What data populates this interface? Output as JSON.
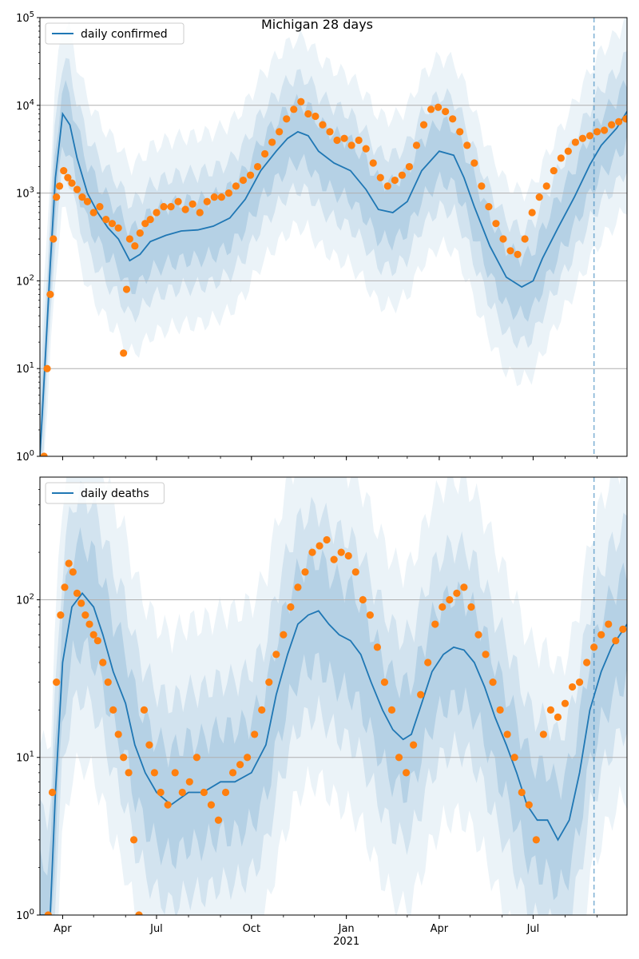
{
  "title": "Michigan 28 days",
  "colors": {
    "line": "#1f77b4",
    "points": "#ff7f0e",
    "band": "#1f77b4",
    "grid": "#b0b0b0",
    "vline": "#1f77b4"
  },
  "x_axis": {
    "range": [
      "2020-03-10",
      "2021-09-30"
    ],
    "ticks": [
      {
        "date": "2020-04-01",
        "label": "Apr"
      },
      {
        "date": "2020-07-01",
        "label": "Jul"
      },
      {
        "date": "2020-10-01",
        "label": "Oct"
      },
      {
        "date": "2021-01-01",
        "label": "Jan"
      },
      {
        "date": "2021-04-01",
        "label": "Apr"
      },
      {
        "date": "2021-07-01",
        "label": "Jul"
      }
    ],
    "year_label": "2021"
  },
  "chart_data": [
    {
      "type": "line",
      "title": "Michigan 28 days",
      "legend": {
        "label": "daily confirmed",
        "placement": "top-left"
      },
      "yscale": "log",
      "ylim": [
        1,
        100000
      ],
      "ytick_labels": [
        "10^0",
        "10^1",
        "10^2",
        "10^3",
        "10^4",
        "10^5"
      ],
      "grid": "horizontal",
      "forecast_start": "2021-08-29",
      "model_median": {
        "x": [
          "2020-03-10",
          "2020-03-15",
          "2020-03-20",
          "2020-03-25",
          "2020-04-01",
          "2020-04-08",
          "2020-04-15",
          "2020-04-25",
          "2020-05-05",
          "2020-05-15",
          "2020-05-25",
          "2020-06-05",
          "2020-06-15",
          "2020-06-25",
          "2020-07-10",
          "2020-07-25",
          "2020-08-10",
          "2020-08-25",
          "2020-09-10",
          "2020-09-25",
          "2020-10-10",
          "2020-10-25",
          "2020-11-05",
          "2020-11-15",
          "2020-11-25",
          "2020-12-05",
          "2020-12-20",
          "2021-01-05",
          "2021-01-20",
          "2021-02-01",
          "2021-02-15",
          "2021-03-01",
          "2021-03-15",
          "2021-04-01",
          "2021-04-15",
          "2021-04-25",
          "2021-05-05",
          "2021-05-20",
          "2021-06-05",
          "2021-06-20",
          "2021-07-01",
          "2021-07-10",
          "2021-07-25",
          "2021-08-10",
          "2021-08-25",
          "2021-09-05",
          "2021-09-20",
          "2021-09-30"
        ],
        "y": [
          1,
          12,
          150,
          1500,
          8000,
          6000,
          2500,
          1000,
          600,
          400,
          300,
          170,
          200,
          280,
          330,
          370,
          380,
          420,
          520,
          850,
          1800,
          3000,
          4200,
          5000,
          4500,
          3000,
          2200,
          1800,
          1100,
          650,
          600,
          800,
          1800,
          3000,
          2700,
          1500,
          700,
          250,
          110,
          85,
          100,
          180,
          400,
          900,
          2100,
          3500,
          5500,
          8500
        ]
      },
      "observed": {
        "x": [
          "2020-03-14",
          "2020-03-17",
          "2020-03-20",
          "2020-03-23",
          "2020-03-26",
          "2020-03-29",
          "2020-04-02",
          "2020-04-06",
          "2020-04-10",
          "2020-04-15",
          "2020-04-20",
          "2020-04-25",
          "2020-05-01",
          "2020-05-07",
          "2020-05-13",
          "2020-05-19",
          "2020-05-25",
          "2020-05-30",
          "2020-06-02",
          "2020-06-05",
          "2020-06-10",
          "2020-06-15",
          "2020-06-20",
          "2020-06-25",
          "2020-07-01",
          "2020-07-08",
          "2020-07-15",
          "2020-07-22",
          "2020-07-29",
          "2020-08-05",
          "2020-08-12",
          "2020-08-19",
          "2020-08-26",
          "2020-09-02",
          "2020-09-09",
          "2020-09-16",
          "2020-09-23",
          "2020-09-30",
          "2020-10-07",
          "2020-10-14",
          "2020-10-21",
          "2020-10-28",
          "2020-11-04",
          "2020-11-11",
          "2020-11-18",
          "2020-11-25",
          "2020-12-02",
          "2020-12-09",
          "2020-12-16",
          "2020-12-23",
          "2020-12-30",
          "2021-01-06",
          "2021-01-13",
          "2021-01-20",
          "2021-01-27",
          "2021-02-03",
          "2021-02-10",
          "2021-02-17",
          "2021-02-24",
          "2021-03-03",
          "2021-03-10",
          "2021-03-17",
          "2021-03-24",
          "2021-03-31",
          "2021-04-07",
          "2021-04-14",
          "2021-04-21",
          "2021-04-28",
          "2021-05-05",
          "2021-05-12",
          "2021-05-19",
          "2021-05-26",
          "2021-06-02",
          "2021-06-09",
          "2021-06-16",
          "2021-06-23",
          "2021-06-30",
          "2021-07-07",
          "2021-07-14",
          "2021-07-21",
          "2021-07-28",
          "2021-08-04",
          "2021-08-11",
          "2021-08-18",
          "2021-08-25",
          "2021-09-01",
          "2021-09-08",
          "2021-09-15",
          "2021-09-22",
          "2021-09-29"
        ],
        "y": [
          1,
          10,
          70,
          300,
          900,
          1200,
          1800,
          1500,
          1300,
          1100,
          900,
          800,
          600,
          700,
          500,
          450,
          400,
          15,
          80,
          300,
          250,
          350,
          450,
          500,
          600,
          700,
          700,
          800,
          650,
          750,
          600,
          800,
          900,
          900,
          1000,
          1200,
          1400,
          1600,
          2000,
          2800,
          3800,
          5000,
          7000,
          9000,
          11000,
          8000,
          7500,
          6000,
          5000,
          4000,
          4200,
          3500,
          4000,
          3200,
          2200,
          1500,
          1200,
          1400,
          1600,
          2000,
          3500,
          6000,
          9000,
          9500,
          8500,
          7000,
          5000,
          3500,
          2200,
          1200,
          700,
          450,
          300,
          220,
          200,
          300,
          600,
          900,
          1200,
          1800,
          2500,
          3000,
          3800,
          4200,
          4500,
          5000,
          5200,
          6000,
          6500,
          7000
        ]
      }
    },
    {
      "type": "line",
      "legend": {
        "label": "daily deaths",
        "placement": "top-left"
      },
      "yscale": "log",
      "ylim": [
        1,
        600
      ],
      "ytick_labels": [
        "10^0",
        "10^1",
        "10^2"
      ],
      "grid": "horizontal",
      "forecast_start": "2021-08-29",
      "model_median": {
        "x": [
          "2020-03-10",
          "2020-03-20",
          "2020-03-25",
          "2020-04-01",
          "2020-04-10",
          "2020-04-20",
          "2020-05-01",
          "2020-05-10",
          "2020-05-20",
          "2020-06-01",
          "2020-06-10",
          "2020-06-20",
          "2020-07-01",
          "2020-07-15",
          "2020-08-01",
          "2020-08-15",
          "2020-09-01",
          "2020-09-15",
          "2020-10-01",
          "2020-10-15",
          "2020-10-25",
          "2020-11-05",
          "2020-11-15",
          "2020-11-25",
          "2020-12-05",
          "2020-12-15",
          "2020-12-25",
          "2021-01-05",
          "2021-01-15",
          "2021-01-25",
          "2021-02-05",
          "2021-02-15",
          "2021-02-25",
          "2021-03-05",
          "2021-03-15",
          "2021-03-25",
          "2021-04-05",
          "2021-04-15",
          "2021-04-25",
          "2021-05-05",
          "2021-05-15",
          "2021-05-25",
          "2021-06-05",
          "2021-06-15",
          "2021-06-25",
          "2021-07-05",
          "2021-07-15",
          "2021-07-25",
          "2021-08-05",
          "2021-08-15",
          "2021-08-25",
          "2021-09-05",
          "2021-09-15",
          "2021-09-30"
        ],
        "y": [
          1,
          1,
          6,
          40,
          90,
          110,
          90,
          60,
          35,
          22,
          12,
          8,
          6,
          5,
          6,
          6,
          7,
          7,
          8,
          12,
          25,
          45,
          70,
          80,
          85,
          70,
          60,
          55,
          45,
          30,
          20,
          15,
          13,
          14,
          22,
          35,
          45,
          50,
          48,
          40,
          28,
          18,
          12,
          8,
          5,
          4,
          4,
          3,
          4,
          8,
          20,
          35,
          50,
          70
        ]
      },
      "observed": {
        "x": [
          "2020-03-18",
          "2020-03-22",
          "2020-03-26",
          "2020-03-30",
          "2020-04-03",
          "2020-04-07",
          "2020-04-11",
          "2020-04-15",
          "2020-04-19",
          "2020-04-23",
          "2020-04-27",
          "2020-05-01",
          "2020-05-05",
          "2020-05-10",
          "2020-05-15",
          "2020-05-20",
          "2020-05-25",
          "2020-05-30",
          "2020-06-04",
          "2020-06-09",
          "2020-06-14",
          "2020-06-19",
          "2020-06-24",
          "2020-06-29",
          "2020-07-05",
          "2020-07-12",
          "2020-07-19",
          "2020-07-26",
          "2020-08-02",
          "2020-08-09",
          "2020-08-16",
          "2020-08-23",
          "2020-08-30",
          "2020-09-06",
          "2020-09-13",
          "2020-09-20",
          "2020-09-27",
          "2020-10-04",
          "2020-10-11",
          "2020-10-18",
          "2020-10-25",
          "2020-11-01",
          "2020-11-08",
          "2020-11-15",
          "2020-11-22",
          "2020-11-29",
          "2020-12-06",
          "2020-12-13",
          "2020-12-20",
          "2020-12-27",
          "2021-01-03",
          "2021-01-10",
          "2021-01-17",
          "2021-01-24",
          "2021-01-31",
          "2021-02-07",
          "2021-02-14",
          "2021-02-21",
          "2021-02-28",
          "2021-03-07",
          "2021-03-14",
          "2021-03-21",
          "2021-03-28",
          "2021-04-04",
          "2021-04-11",
          "2021-04-18",
          "2021-04-25",
          "2021-05-02",
          "2021-05-09",
          "2021-05-16",
          "2021-05-23",
          "2021-05-30",
          "2021-06-06",
          "2021-06-13",
          "2021-06-20",
          "2021-06-27",
          "2021-07-04",
          "2021-07-11",
          "2021-07-18",
          "2021-07-25",
          "2021-08-01",
          "2021-08-08",
          "2021-08-15",
          "2021-08-22",
          "2021-08-29",
          "2021-09-05",
          "2021-09-12",
          "2021-09-19",
          "2021-09-26"
        ],
        "y": [
          1,
          6,
          30,
          80,
          120,
          170,
          150,
          110,
          95,
          80,
          70,
          60,
          55,
          40,
          30,
          20,
          14,
          10,
          8,
          3,
          1,
          20,
          12,
          8,
          6,
          5,
          8,
          6,
          7,
          10,
          6,
          5,
          4,
          6,
          8,
          9,
          10,
          14,
          20,
          30,
          45,
          60,
          90,
          120,
          150,
          200,
          220,
          240,
          180,
          200,
          190,
          150,
          100,
          80,
          50,
          30,
          20,
          10,
          8,
          12,
          25,
          40,
          70,
          90,
          100,
          110,
          120,
          90,
          60,
          45,
          30,
          20,
          14,
          10,
          6,
          5,
          3,
          14,
          20,
          18,
          22,
          28,
          30,
          40,
          50,
          60,
          70,
          55,
          65
        ]
      }
    }
  ]
}
